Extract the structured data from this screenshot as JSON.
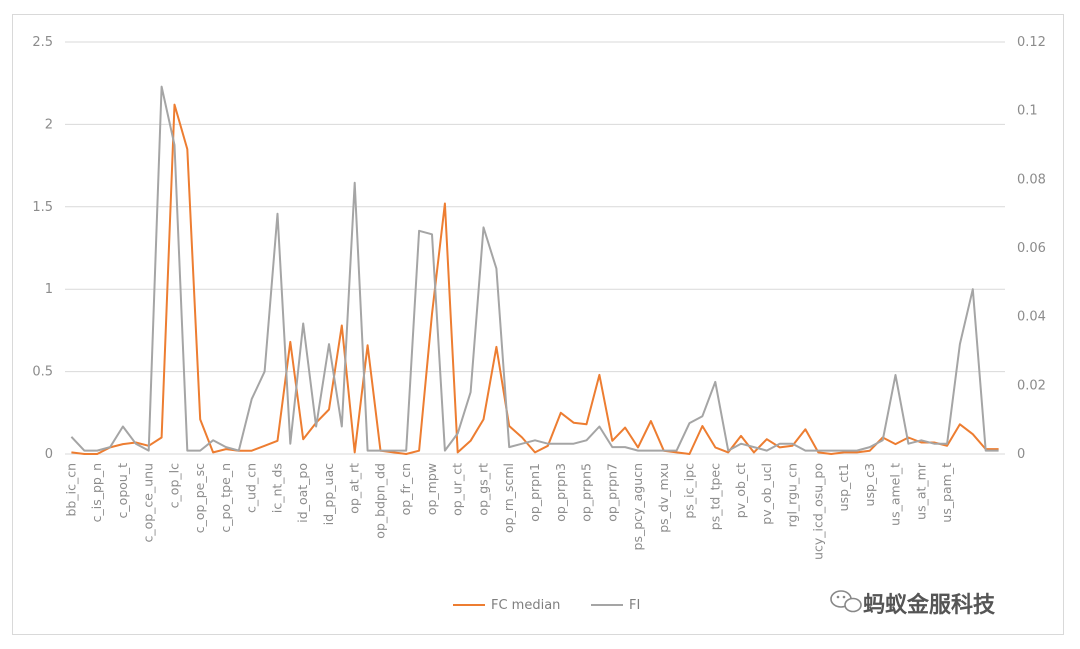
{
  "chart_data": {
    "type": "line",
    "series": [
      {
        "name": "FC median",
        "axis": "left",
        "color": "#ED7D31",
        "values": [
          0.01,
          0,
          0,
          0.04,
          0.06,
          0.07,
          0.05,
          0.1,
          2.12,
          1.85,
          0.21,
          0.01,
          0.03,
          0.02,
          0.02,
          0.05,
          0.08,
          0.68,
          0.09,
          0.19,
          0.27,
          0.78,
          0.01,
          0.66,
          0.02,
          0.01,
          0,
          0.02,
          0.85,
          1.52,
          0.01,
          0.08,
          0.21,
          0.65,
          0.17,
          0.1,
          0.01,
          0.05,
          0.25,
          0.19,
          0.18,
          0.48,
          0.08,
          0.16,
          0.04,
          0.2,
          0.02,
          0.01,
          0,
          0.17,
          0.04,
          0.01,
          0.11,
          0.01,
          0.09,
          0.04,
          0.05,
          0.15,
          0.01,
          0,
          0.01,
          0.01,
          0.02,
          0.1,
          0.06,
          0.1,
          0.07,
          0.07,
          0.05,
          0.18,
          0.12,
          0.03,
          0.03
        ]
      },
      {
        "name": "FI",
        "axis": "right",
        "color": "#A5A5A5",
        "values": [
          0.005,
          0.001,
          0.001,
          0.002,
          0.008,
          0.003,
          0.001,
          0.107,
          0.09,
          0.001,
          0.001,
          0.004,
          0.002,
          0.001,
          0.016,
          0.024,
          0.07,
          0.003,
          0.038,
          0.008,
          0.032,
          0.008,
          0.079,
          0.001,
          0.001,
          0.001,
          0.001,
          0.065,
          0.064,
          0.001,
          0.006,
          0.018,
          0.066,
          0.054,
          0.002,
          0.003,
          0.004,
          0.003,
          0.003,
          0.003,
          0.004,
          0.008,
          0.002,
          0.002,
          0.001,
          0.001,
          0.001,
          0.001,
          0.009,
          0.011,
          0.021,
          0.001,
          0.003,
          0.002,
          0.001,
          0.003,
          0.003,
          0.001,
          0.001,
          0.001,
          0.001,
          0.001,
          0.002,
          0.004,
          0.023,
          0.003,
          0.004,
          0.003,
          0.003,
          0.032,
          0.048,
          0.001,
          0.001
        ]
      }
    ],
    "y_left": {
      "min": 0,
      "max": 2.5,
      "ticks": [
        "0",
        "0.5",
        "1",
        "1.5",
        "2",
        "2.5"
      ]
    },
    "y_right": {
      "min": 0,
      "max": 0.12,
      "ticks": [
        "0",
        "0.02",
        "0.04",
        "0.06",
        "0.08",
        "0.1",
        "0.12"
      ]
    },
    "xtick_labels": [
      "bb_ic_cn",
      "c_is_pp_n",
      "c_opou_t",
      "c_op_ce_unu",
      "c_op_lc",
      "c_op_pe_sc",
      "c_po_tpe_n",
      "c_ud_cn",
      "ic_nt_ds",
      "id_oat_po",
      "id_pp_uac",
      "op_at_rt",
      "op_bdpn_dd",
      "op_fr_cn",
      "op_mpw",
      "op_ur_ct",
      "op_gs_rt",
      "op_rn_scml",
      "op_prpn1",
      "op_prpn3",
      "op_prpn5",
      "op_prpn7",
      "ps_pcy_agucn",
      "ps_dv_mxu",
      "ps_ic_ipc",
      "ps_td_tpec",
      "pv_ob_ct",
      "pv_ob_ucl",
      "rgl_rgu_cn",
      "ucy_icd_osu_po",
      "usp_ct1",
      "usp_c3",
      "us_amel_t",
      "us_at_mr",
      "us_pam_t"
    ],
    "grid": true,
    "legend": "bottom-center"
  },
  "watermark": {
    "text": "蚂蚁金服科技"
  }
}
